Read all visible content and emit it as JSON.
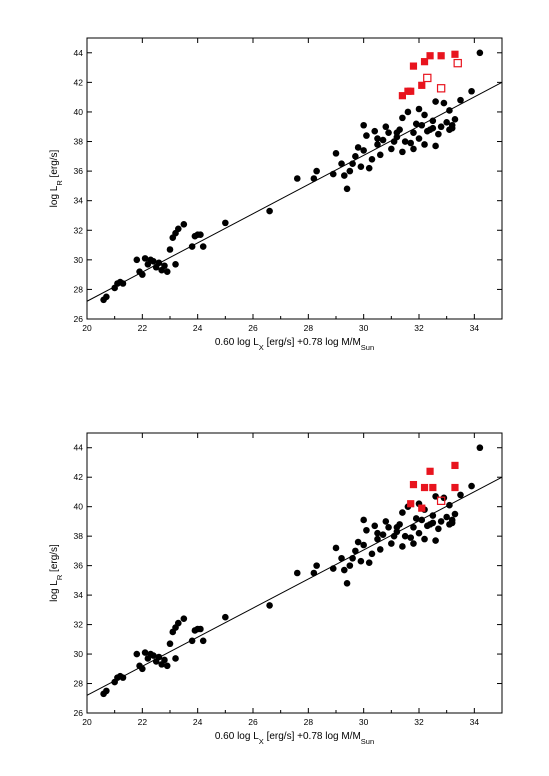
{
  "chart_data": [
    {
      "type": "scatter",
      "xlabel": "0.60 log L_X [erg/s] +0.78 log M/M_Sun",
      "xlabel_parts": {
        "a": "0.60 log L",
        "a_sub": "X",
        "b": " [erg/s] +0.78 log M/M",
        "b_sub": "Sun"
      },
      "ylabel_parts": {
        "a": "log L",
        "a_sub": "R",
        "b": " [erg/s]"
      },
      "ylabel": "log L_R [erg/s]",
      "xlim": [
        20,
        35
      ],
      "ylim": [
        26,
        45
      ],
      "xticks": [
        "20",
        "22",
        "24",
        "26",
        "28",
        "30",
        "32",
        "34"
      ],
      "yticks": [
        "26",
        "28",
        "30",
        "32",
        "34",
        "36",
        "38",
        "40",
        "42",
        "44"
      ],
      "grid": false,
      "legend": "none",
      "colors": {
        "black": "#000000",
        "red": "#e8141e"
      },
      "fit_line": {
        "x": [
          20,
          35
        ],
        "y": [
          27.2,
          42.0
        ]
      },
      "series": [
        {
          "marker": "filled-circle",
          "color": "#000000",
          "points": [
            [
              20.6,
              27.3
            ],
            [
              20.7,
              27.5
            ],
            [
              21.0,
              28.1
            ],
            [
              21.1,
              28.4
            ],
            [
              21.2,
              28.5
            ],
            [
              21.3,
              28.4
            ],
            [
              21.8,
              30.0
            ],
            [
              21.9,
              29.2
            ],
            [
              22.0,
              29.0
            ],
            [
              22.1,
              30.1
            ],
            [
              22.2,
              29.7
            ],
            [
              22.3,
              30.0
            ],
            [
              22.4,
              29.9
            ],
            [
              22.5,
              29.5
            ],
            [
              22.6,
              29.8
            ],
            [
              22.7,
              29.3
            ],
            [
              22.8,
              29.6
            ],
            [
              22.9,
              29.2
            ],
            [
              23.0,
              30.7
            ],
            [
              23.1,
              31.5
            ],
            [
              23.2,
              31.8
            ],
            [
              23.3,
              32.1
            ],
            [
              23.2,
              29.7
            ],
            [
              23.5,
              32.4
            ],
            [
              23.8,
              30.9
            ],
            [
              23.9,
              31.6
            ],
            [
              24.0,
              31.7
            ],
            [
              24.1,
              31.7
            ],
            [
              24.2,
              30.9
            ],
            [
              25.0,
              32.5
            ],
            [
              26.6,
              33.3
            ],
            [
              27.6,
              35.5
            ],
            [
              28.2,
              35.5
            ],
            [
              28.3,
              36.0
            ],
            [
              28.9,
              35.8
            ],
            [
              29.0,
              37.2
            ],
            [
              29.2,
              36.5
            ],
            [
              29.3,
              35.7
            ],
            [
              29.4,
              34.8
            ],
            [
              29.5,
              36.0
            ],
            [
              29.6,
              36.5
            ],
            [
              29.7,
              37.0
            ],
            [
              29.9,
              36.3
            ],
            [
              30.0,
              37.4
            ],
            [
              30.1,
              38.4
            ],
            [
              30.2,
              36.2
            ],
            [
              30.3,
              36.8
            ],
            [
              30.4,
              38.7
            ],
            [
              30.5,
              37.8
            ],
            [
              30.7,
              38.1
            ],
            [
              30.9,
              38.6
            ],
            [
              31.0,
              37.5
            ],
            [
              31.1,
              38.0
            ],
            [
              31.2,
              38.3
            ],
            [
              31.3,
              38.8
            ],
            [
              31.4,
              39.6
            ],
            [
              31.5,
              38.0
            ],
            [
              31.6,
              40.0
            ],
            [
              31.7,
              37.9
            ],
            [
              31.8,
              38.6
            ],
            [
              31.9,
              39.2
            ],
            [
              32.0,
              40.2
            ],
            [
              32.1,
              39.1
            ],
            [
              32.2,
              39.8
            ],
            [
              32.3,
              38.7
            ],
            [
              32.4,
              38.8
            ],
            [
              32.5,
              39.4
            ],
            [
              32.6,
              40.7
            ],
            [
              32.7,
              38.5
            ],
            [
              32.8,
              39.0
            ],
            [
              32.9,
              40.6
            ],
            [
              33.0,
              39.3
            ],
            [
              33.1,
              40.1
            ],
            [
              33.2,
              39.1
            ],
            [
              33.3,
              39.5
            ],
            [
              33.5,
              40.8
            ],
            [
              33.9,
              41.4
            ],
            [
              34.2,
              44.0
            ],
            [
              29.8,
              37.6
            ],
            [
              30.6,
              37.1
            ],
            [
              31.4,
              37.3
            ],
            [
              32.2,
              37.8
            ],
            [
              33.1,
              38.8
            ],
            [
              32.6,
              37.7
            ],
            [
              30.8,
              39.0
            ],
            [
              31.8,
              37.5
            ],
            [
              32.5,
              38.9
            ],
            [
              33.2,
              38.9
            ],
            [
              30.0,
              39.1
            ],
            [
              32.0,
              38.2
            ],
            [
              31.2,
              38.6
            ],
            [
              30.5,
              38.2
            ]
          ]
        }
      ],
      "red_filled": [
        [
          31.6,
          41.4
        ],
        [
          31.7,
          41.4
        ],
        [
          31.8,
          43.1
        ],
        [
          32.1,
          41.8
        ],
        [
          32.2,
          43.4
        ],
        [
          32.4,
          43.8
        ],
        [
          32.8,
          43.8
        ],
        [
          33.3,
          43.9
        ],
        [
          31.4,
          41.1
        ]
      ],
      "red_open": [
        [
          32.3,
          42.3
        ],
        [
          32.8,
          41.6
        ],
        [
          33.4,
          43.3
        ]
      ]
    },
    {
      "type": "scatter",
      "xlabel": "0.60 log L_X [erg/s] +0.78 log M/M_Sun",
      "xlabel_parts": {
        "a": "0.60 log L",
        "a_sub": "X",
        "b": " [erg/s] +0.78 log M/M",
        "b_sub": "Sun"
      },
      "ylabel_parts": {
        "a": "log L",
        "a_sub": "R",
        "b": " [erg/s]"
      },
      "ylabel": "log L_R [erg/s]",
      "xlim": [
        20,
        35
      ],
      "ylim": [
        26,
        45
      ],
      "xticks": [
        "20",
        "22",
        "24",
        "26",
        "28",
        "30",
        "32",
        "34"
      ],
      "yticks": [
        "26",
        "28",
        "30",
        "32",
        "34",
        "36",
        "38",
        "40",
        "42",
        "44"
      ],
      "grid": false,
      "legend": "none",
      "colors": {
        "black": "#000000",
        "red": "#e8141e"
      },
      "fit_line": {
        "x": [
          20,
          35
        ],
        "y": [
          27.2,
          42.0
        ]
      },
      "series": [
        {
          "marker": "filled-circle",
          "color": "#000000",
          "points": [
            [
              20.6,
              27.3
            ],
            [
              20.7,
              27.5
            ],
            [
              21.0,
              28.1
            ],
            [
              21.1,
              28.4
            ],
            [
              21.2,
              28.5
            ],
            [
              21.3,
              28.4
            ],
            [
              21.8,
              30.0
            ],
            [
              21.9,
              29.2
            ],
            [
              22.0,
              29.0
            ],
            [
              22.1,
              30.1
            ],
            [
              22.2,
              29.7
            ],
            [
              22.3,
              30.0
            ],
            [
              22.4,
              29.9
            ],
            [
              22.5,
              29.5
            ],
            [
              22.6,
              29.8
            ],
            [
              22.7,
              29.3
            ],
            [
              22.8,
              29.6
            ],
            [
              22.9,
              29.2
            ],
            [
              23.0,
              30.7
            ],
            [
              23.1,
              31.5
            ],
            [
              23.2,
              31.8
            ],
            [
              23.3,
              32.1
            ],
            [
              23.2,
              29.7
            ],
            [
              23.5,
              32.4
            ],
            [
              23.8,
              30.9
            ],
            [
              23.9,
              31.6
            ],
            [
              24.0,
              31.7
            ],
            [
              24.1,
              31.7
            ],
            [
              24.2,
              30.9
            ],
            [
              25.0,
              32.5
            ],
            [
              26.6,
              33.3
            ],
            [
              27.6,
              35.5
            ],
            [
              28.2,
              35.5
            ],
            [
              28.3,
              36.0
            ],
            [
              28.9,
              35.8
            ],
            [
              29.0,
              37.2
            ],
            [
              29.2,
              36.5
            ],
            [
              29.3,
              35.7
            ],
            [
              29.4,
              34.8
            ],
            [
              29.5,
              36.0
            ],
            [
              29.6,
              36.5
            ],
            [
              29.7,
              37.0
            ],
            [
              29.9,
              36.3
            ],
            [
              30.0,
              37.4
            ],
            [
              30.1,
              38.4
            ],
            [
              30.2,
              36.2
            ],
            [
              30.3,
              36.8
            ],
            [
              30.4,
              38.7
            ],
            [
              30.5,
              37.8
            ],
            [
              30.7,
              38.1
            ],
            [
              30.9,
              38.6
            ],
            [
              31.0,
              37.5
            ],
            [
              31.1,
              38.0
            ],
            [
              31.2,
              38.3
            ],
            [
              31.3,
              38.8
            ],
            [
              31.4,
              39.6
            ],
            [
              31.5,
              38.0
            ],
            [
              31.6,
              40.0
            ],
            [
              31.7,
              37.9
            ],
            [
              31.8,
              38.6
            ],
            [
              31.9,
              39.2
            ],
            [
              32.0,
              40.2
            ],
            [
              32.1,
              39.1
            ],
            [
              32.2,
              39.8
            ],
            [
              32.3,
              38.7
            ],
            [
              32.4,
              38.8
            ],
            [
              32.5,
              39.4
            ],
            [
              32.6,
              40.7
            ],
            [
              32.7,
              38.5
            ],
            [
              32.8,
              39.0
            ],
            [
              32.9,
              40.6
            ],
            [
              33.0,
              39.3
            ],
            [
              33.1,
              40.1
            ],
            [
              33.2,
              39.1
            ],
            [
              33.3,
              39.5
            ],
            [
              33.5,
              40.8
            ],
            [
              33.9,
              41.4
            ],
            [
              34.2,
              44.0
            ],
            [
              29.8,
              37.6
            ],
            [
              30.6,
              37.1
            ],
            [
              31.4,
              37.3
            ],
            [
              32.2,
              37.8
            ],
            [
              33.1,
              38.8
            ],
            [
              32.6,
              37.7
            ],
            [
              30.8,
              39.0
            ],
            [
              31.8,
              37.5
            ],
            [
              32.5,
              38.9
            ],
            [
              33.2,
              38.9
            ],
            [
              30.0,
              39.1
            ],
            [
              32.0,
              38.2
            ],
            [
              31.2,
              38.6
            ],
            [
              30.5,
              38.2
            ]
          ]
        }
      ],
      "red_filled": [
        [
          31.7,
          40.2
        ],
        [
          31.8,
          41.5
        ],
        [
          32.1,
          39.9
        ],
        [
          32.2,
          41.3
        ],
        [
          32.4,
          42.4
        ],
        [
          32.5,
          41.3
        ],
        [
          33.3,
          42.8
        ],
        [
          33.3,
          41.3
        ]
      ],
      "red_open": [
        [
          32.8,
          40.4
        ]
      ]
    }
  ]
}
